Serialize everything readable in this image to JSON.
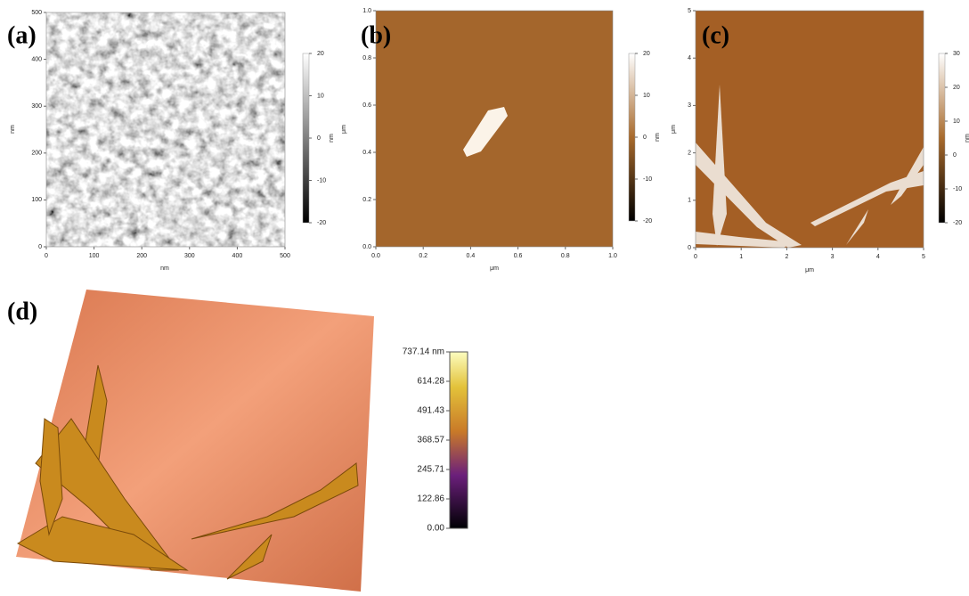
{
  "panels": [
    {
      "label": "(a)",
      "xticks": [
        0,
        100,
        200,
        300,
        400,
        500
      ],
      "yticks": [
        0,
        100,
        200,
        300,
        400,
        500
      ],
      "xlabel": "nm",
      "ylabel": "nm",
      "colorbar_ticks": [
        20,
        10,
        0,
        -10,
        -20
      ],
      "colorbar_label": "nm"
    },
    {
      "label": "(b)",
      "xticks": [
        {
          "value": 0,
          "label": "0.0"
        },
        {
          "value": 0.2,
          "label": "0.2"
        },
        {
          "value": 0.4,
          "label": "0.4"
        },
        {
          "value": 0.6,
          "label": "0.6"
        },
        {
          "value": 0.8,
          "label": "0.8"
        },
        {
          "value": 1,
          "label": "1.0"
        }
      ],
      "yticks": [
        {
          "value": 0,
          "label": "0.0"
        },
        {
          "value": 0.2,
          "label": "0.2"
        },
        {
          "value": 0.4,
          "label": "0.4"
        },
        {
          "value": 0.6,
          "label": "0.6"
        },
        {
          "value": 0.8,
          "label": "0.8"
        },
        {
          "value": 1,
          "label": "1.0"
        }
      ],
      "xlabel": "μm",
      "ylabel": "μm",
      "colorbar_ticks": [
        20,
        10,
        0,
        -10,
        -20
      ],
      "colorbar_label": "nm"
    },
    {
      "label": "(c)",
      "xticks": [
        0,
        1,
        2,
        3,
        4,
        5
      ],
      "yticks": [
        0,
        1,
        2,
        3,
        4,
        5
      ],
      "xlabel": "μm",
      "ylabel": "μm",
      "colorbar_ticks": [
        30,
        20,
        10,
        0,
        -10,
        -20
      ],
      "colorbar_label": "nm"
    },
    {
      "label": "(d)",
      "colorbar_ticks": [
        {
          "value": 737.14,
          "label": "737.14 nm"
        },
        614.28,
        491.43,
        368.57,
        245.71,
        122.86,
        {
          "value": 0,
          "label": "0.00"
        }
      ]
    }
  ]
}
